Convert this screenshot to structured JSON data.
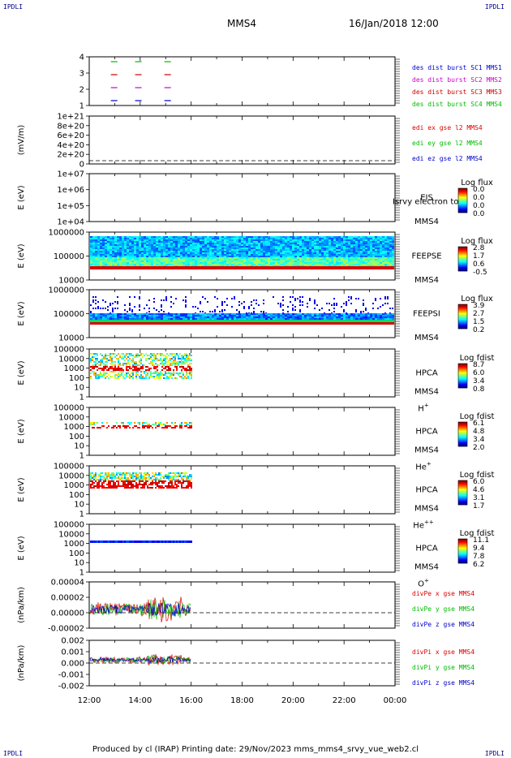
{
  "header": {
    "corner_label": "IPDLI",
    "spacecraft": "MMS4",
    "datetime": "16/Jan/2018 12:00"
  },
  "footer": {
    "text": "Produced by cl (IRAP)   Printing date: 29/Nov/2023   mms_mms4_srvy_vue_web2.cl"
  },
  "x_axis": {
    "tick_labels": [
      "12:00",
      "14:00",
      "16:00",
      "18:00",
      "20:00",
      "22:00",
      "00:00"
    ]
  },
  "colors": {
    "burst_sc1": "#0000cc",
    "burst_sc2": "#cc00cc",
    "burst_sc3": "#cc0000",
    "burst_sc4": "#00bb00",
    "x": "#dd0000",
    "y": "#00bb00",
    "z": "#0000cc"
  },
  "panels": [
    {
      "id": "burst",
      "ylabel": "",
      "ticks": [
        "4",
        "3",
        "2",
        "1"
      ],
      "legend": [
        "des dist burst SC1 MMS1",
        "des dist burst SC2 MMS2",
        "des dist burst SC3 MMS3",
        "des dist burst SC4 MMS4"
      ],
      "legend_colors": [
        "#0000cc",
        "#cc00cc",
        "#cc0000",
        "#00bb00"
      ]
    },
    {
      "id": "edi",
      "ylabel": "(mV/m)",
      "ticks": [
        "1e+21",
        "8e+20",
        "6e+20",
        "4e+20",
        "2e+20",
        "0"
      ],
      "legend": [
        "edi ex gse l2 MMS4",
        "edi ey gse l2 MMS4",
        "edi ez gse l2 MMS4"
      ],
      "legend_colors": [
        "#dd0000",
        "#00bb00",
        "#0000cc"
      ]
    },
    {
      "id": "eis",
      "ylabel": "E (eV)",
      "ticks": [
        "1e+07",
        "1e+06",
        "1e+05",
        "1e+04"
      ],
      "instrument": [
        "EIS",
        "MMS4"
      ],
      "overlay": "Isrvy electron to",
      "cbar_title": "Log flux",
      "cbar_ticks": [
        "0.0",
        "0.0",
        "0.0",
        "0.0"
      ]
    },
    {
      "id": "feepse",
      "ylabel": "E (eV)",
      "ticks": [
        "1000000",
        "100000",
        "10000"
      ],
      "instrument": [
        "FEEPSE",
        "MMS4"
      ],
      "cbar_title": "Log flux",
      "cbar_ticks": [
        "2.8",
        "1.7",
        "0.6",
        "-0.5"
      ]
    },
    {
      "id": "feepsi",
      "ylabel": "E (eV)",
      "ticks": [
        "1000000",
        "100000",
        "10000"
      ],
      "instrument": [
        "FEEPSI",
        "MMS4"
      ],
      "cbar_title": "Log flux",
      "cbar_ticks": [
        "3.9",
        "2.7",
        "1.5",
        "0.2"
      ]
    },
    {
      "id": "hpca_h",
      "ylabel": "E (eV)",
      "ticks": [
        "100000",
        "10000",
        "1000",
        "100",
        "10",
        "1"
      ],
      "instrument": [
        "HPCA",
        "MMS4"
      ],
      "species": "H",
      "species_sup": "+",
      "cbar_title": "Log fdist",
      "cbar_ticks": [
        "8.7",
        "6.0",
        "3.4",
        "0.8"
      ]
    },
    {
      "id": "hpca_he",
      "ylabel": "E (eV)",
      "ticks": [
        "100000",
        "10000",
        "1000",
        "100",
        "10",
        "1"
      ],
      "instrument": [
        "HPCA",
        "MMS4"
      ],
      "species": "He",
      "species_sup": "+",
      "cbar_title": "Log fdist",
      "cbar_ticks": [
        "6.1",
        "4.8",
        "3.4",
        "2.0"
      ]
    },
    {
      "id": "hpca_hepp",
      "ylabel": "E (eV)",
      "ticks": [
        "100000",
        "10000",
        "1000",
        "100",
        "10",
        "1"
      ],
      "instrument": [
        "HPCA",
        "MMS4"
      ],
      "species": "He",
      "species_sup": "++",
      "cbar_title": "Log fdist",
      "cbar_ticks": [
        "6.0",
        "4.6",
        "3.1",
        "1.7"
      ]
    },
    {
      "id": "hpca_o",
      "ylabel": "E (eV)",
      "ticks": [
        "100000",
        "10000",
        "1000",
        "100",
        "10",
        "1"
      ],
      "instrument": [
        "HPCA",
        "MMS4"
      ],
      "species": "O",
      "species_sup": "+",
      "cbar_title": "Log fdist",
      "cbar_ticks": [
        "11.1",
        "9.4",
        "7.8",
        "6.2"
      ]
    },
    {
      "id": "divpe",
      "ylabel": "(nPa/km)",
      "ticks": [
        "0.00004",
        "0.00002",
        "0.00000",
        "-0.00002"
      ],
      "legend": [
        "divPe x gse MMS4",
        "divPe y gse MMS4",
        "divPe z gse MMS4"
      ],
      "legend_colors": [
        "#dd0000",
        "#00bb00",
        "#0000cc"
      ]
    },
    {
      "id": "divpi",
      "ylabel": "(nPa/km)",
      "ticks": [
        "0.002",
        "0.001",
        "0.000",
        "-0.001",
        "-0.002"
      ],
      "legend": [
        "divPi x gse MMS4",
        "divPi y gse MMS4",
        "divPi z gse MMS4"
      ],
      "legend_colors": [
        "#dd0000",
        "#00bb00",
        "#0000cc"
      ]
    }
  ],
  "chart_data": {
    "type": "line",
    "x_range_hours": [
      12,
      24
    ],
    "data_end_hour": 16,
    "burst_intervals": {
      "sc_levels": [
        1,
        2,
        3,
        4
      ],
      "start_hours": [
        12.85,
        13.8,
        14.95
      ]
    },
    "spectrogram_bands": [
      {
        "panel": "feepse",
        "log_e_range": [
          4.6,
          6
        ],
        "core_log_e": [
          4.6,
          4.7
        ]
      },
      {
        "panel": "feepsi",
        "log_e_range": [
          4.7,
          5.4
        ],
        "core_log_e": [
          4.7,
          4.8
        ]
      },
      {
        "panel": "hpca_h",
        "log_e_range": [
          1.5,
          4
        ],
        "core_log_e": [
          2.6,
          2.9
        ]
      },
      {
        "panel": "hpca_he",
        "log_e_range": [
          2.8,
          3.7
        ],
        "core_log_e": [
          2.8,
          2.9
        ]
      },
      {
        "panel": "hpca_hepp",
        "log_e_range": [
          2.6,
          3.7
        ],
        "core_log_e": [
          2.9,
          3.2
        ]
      },
      {
        "panel": "hpca_o",
        "log_e_range": [
          2.8,
          3.0
        ],
        "core_log_e": [
          2.8,
          3.0
        ]
      }
    ],
    "divpe_ylim": [
      -2e-05,
      4e-05
    ],
    "divpi_ylim": [
      -0.0025,
      0.0025
    ]
  }
}
